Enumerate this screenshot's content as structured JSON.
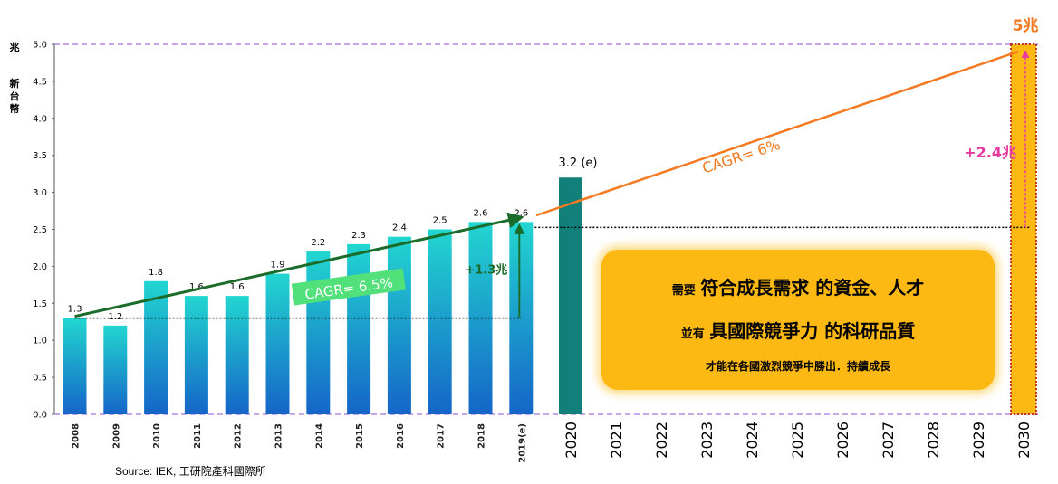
{
  "chart_data": {
    "type": "bar",
    "ylabel_unit": "兆",
    "ylabel_text": "新台幣",
    "ylim": [
      0,
      5.0
    ],
    "yticks": [
      "0.0",
      "0.5",
      "1.0",
      "1.5",
      "2.0",
      "2.5",
      "3.0",
      "3.5",
      "4.0",
      "4.5",
      "5.0"
    ],
    "grid": false,
    "historical": {
      "categories": [
        "2008",
        "2009",
        "2010",
        "2011",
        "2012",
        "2013",
        "2014",
        "2015",
        "2016",
        "2017",
        "2018",
        "2019(e)"
      ],
      "values": [
        1.3,
        1.2,
        1.8,
        1.6,
        1.6,
        1.9,
        2.2,
        2.3,
        2.4,
        2.5,
        2.6,
        2.6
      ],
      "labels": [
        "1.3",
        "1.2",
        "1.8",
        "1.6",
        "1.6",
        "1.9",
        "2.2",
        "2.3",
        "2.4",
        "2.5",
        "2.6",
        "2.6"
      ],
      "color_top": "#22d6d0",
      "color_bottom": "#1565c8"
    },
    "projection": {
      "categories": [
        "2020",
        "2021",
        "2022",
        "2023",
        "2024",
        "2025",
        "2026",
        "2027",
        "2028",
        "2029",
        "2030"
      ],
      "value_2020": 3.2,
      "label_2020": "3.2 (e)",
      "color_2020": "#11807a",
      "value_2030": 5.0,
      "label_2030": "5兆",
      "color_2030": "#fdb913"
    },
    "annotations": {
      "cagr_hist": "CAGR= 6.5%",
      "cagr_proj": "CAGR= 6%",
      "delta_hist": "+1.3兆",
      "delta_proj": "+2.4兆"
    },
    "colors": {
      "hist_trend": "#1b6b2a",
      "proj_trend": "#f47920",
      "cagr_box": "#52e07a",
      "delta_proj": "#e83aa0",
      "label_2030": "#f47920",
      "frame_dash": "#b388e0",
      "dotted_red": "#c0392b"
    }
  },
  "callout": {
    "line1_small": "需要",
    "line1_big": "符合成長需求 的資金、人才",
    "line2_small": "並有",
    "line2_big": "具國際競爭力 的科研品質",
    "line3": "才能在各國激烈競爭中勝出．持續成長"
  },
  "source": "Source: IEK, 工研院產科國際所"
}
